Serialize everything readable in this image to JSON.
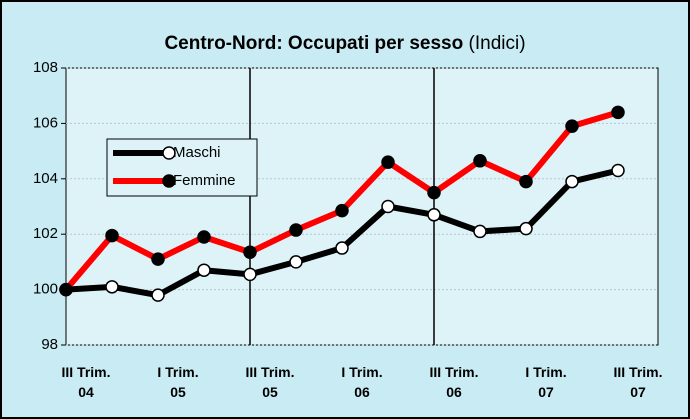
{
  "chart_data": {
    "type": "line",
    "title": "Centro-Nord: Occupati per sesso",
    "subtitle": "(Indici)",
    "categories": [
      "III Trim.\n04",
      null,
      "I Trim.\n05",
      null,
      "III Trim.\n05",
      null,
      "I Trim.\n06",
      null,
      "III Trim.\n06",
      null,
      "I Trim.\n07",
      null,
      "III Trim.\n07"
    ],
    "series": [
      {
        "name": "Maschi",
        "color": "#000000",
        "marker_color": "#ffffff",
        "values": [
          100,
          100.1,
          99.8,
          100.7,
          100.55,
          101.0,
          101.5,
          103.0,
          102.7,
          102.1,
          102.2,
          103.9,
          104.3
        ]
      },
      {
        "name": "Femmine",
        "color": "#ff0000",
        "marker_color": "#000000",
        "values": [
          100,
          101.95,
          101.1,
          101.9,
          101.35,
          102.15,
          102.85,
          104.6,
          103.5,
          104.65,
          103.9,
          105.9,
          106.4
        ]
      }
    ],
    "ylim": [
      98,
      108
    ],
    "yticks": [
      98,
      100,
      102,
      104,
      106,
      108
    ],
    "grid": true,
    "legend": "left"
  }
}
